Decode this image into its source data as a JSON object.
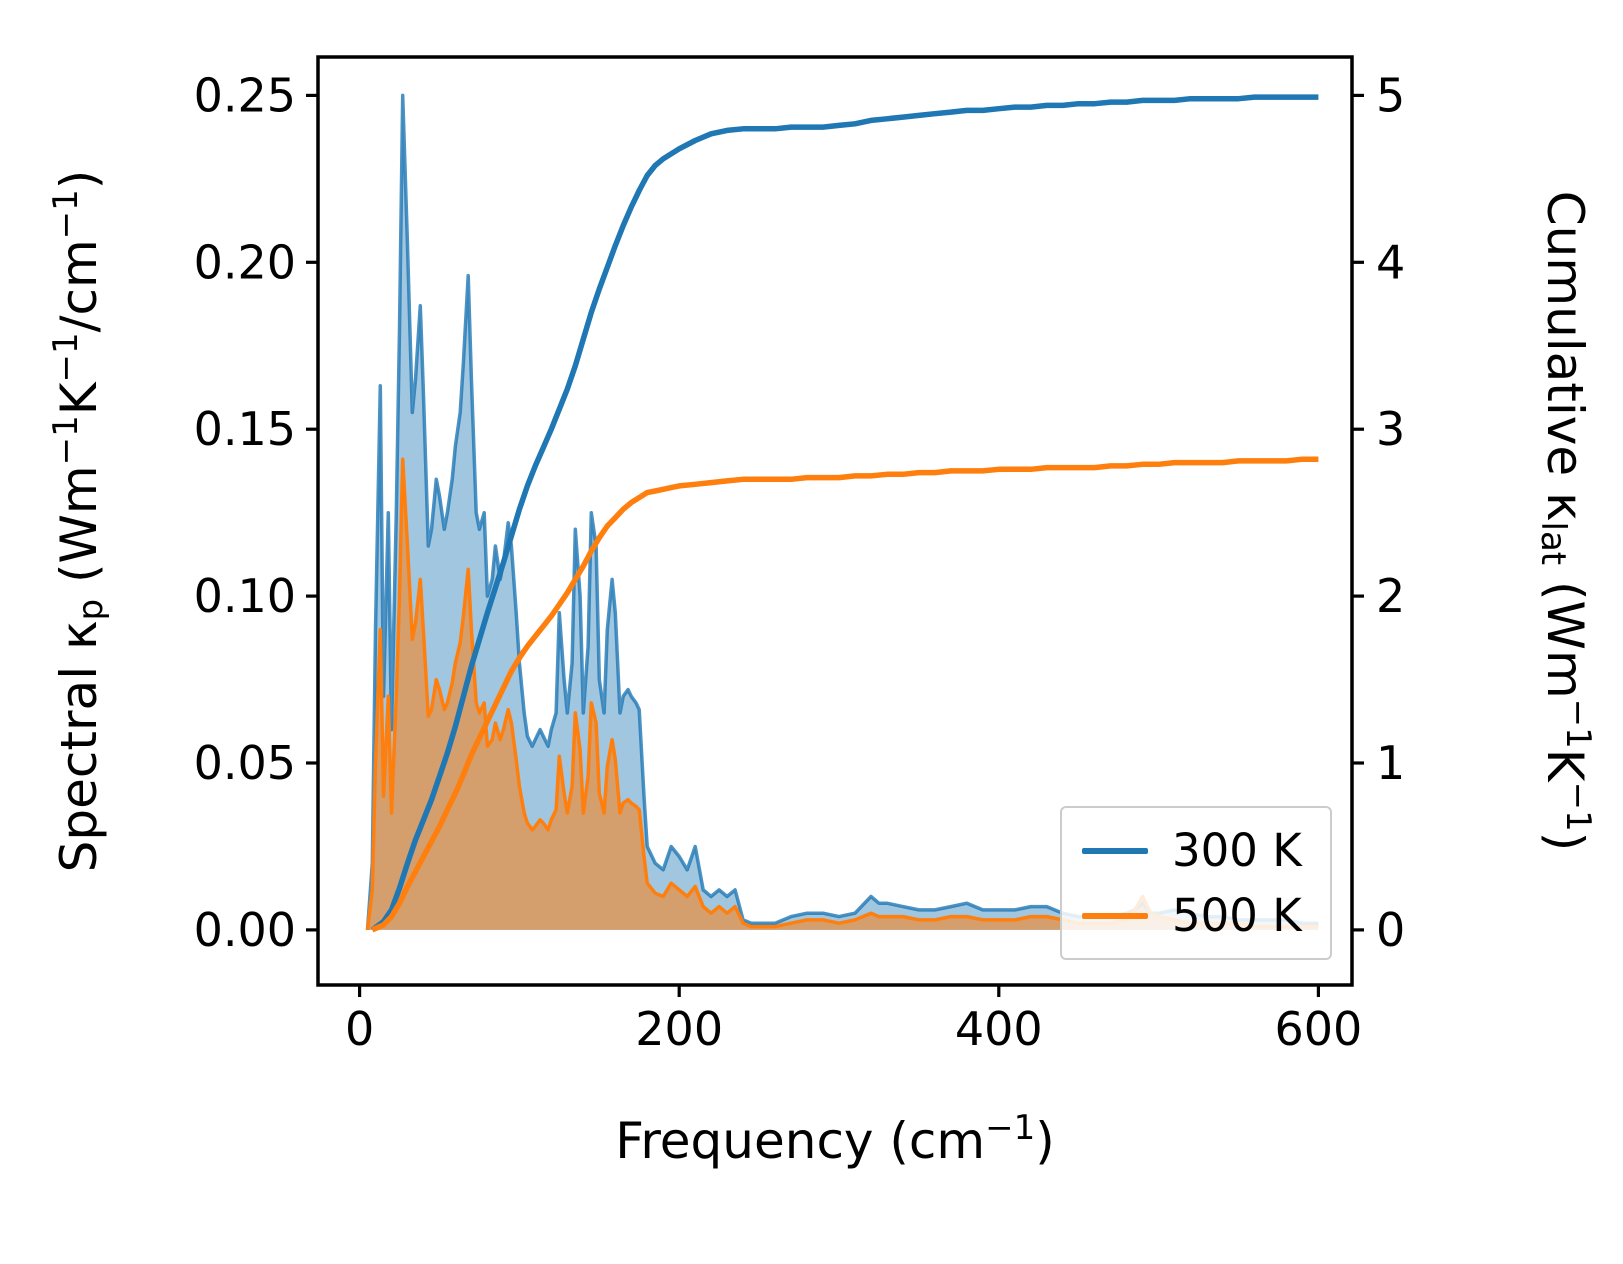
{
  "colors": {
    "series_300K": "#1f77b4",
    "series_500K": "#ff7f0e",
    "axes": "#000000",
    "legend_border": "#cccccc",
    "background": "#ffffff"
  },
  "chart_data": {
    "type": "area",
    "title": "",
    "grid": false,
    "legend": {
      "position": "lower right",
      "entries": [
        {
          "label": "300 K",
          "color": "#1f77b4"
        },
        {
          "label": "500 K",
          "color": "#ff7f0e"
        }
      ]
    },
    "xlabel_parts": [
      {
        "t": "Frequency (cm"
      },
      {
        "t": "−1",
        "s": "sup"
      },
      {
        "t": ")"
      }
    ],
    "ylabel_left_parts": [
      {
        "t": "Spectral κ"
      },
      {
        "t": "p",
        "s": "sub"
      },
      {
        "t": " (Wm"
      },
      {
        "t": "−1",
        "s": "sup"
      },
      {
        "t": "K"
      },
      {
        "t": "−1",
        "s": "sup"
      },
      {
        "t": "/cm"
      },
      {
        "t": "−1",
        "s": "sup"
      },
      {
        "t": ")"
      }
    ],
    "ylabel_right_parts": [
      {
        "t": "Cumulative κ"
      },
      {
        "t": "lat",
        "s": "sub"
      },
      {
        "t": " (Wm"
      },
      {
        "t": "−1",
        "s": "sup"
      },
      {
        "t": "K"
      },
      {
        "t": "−1",
        "s": "sup"
      },
      {
        "t": ")"
      }
    ],
    "xlim": [
      -26,
      621
    ],
    "ylim_left": [
      -0.0165,
      0.2615
    ],
    "ylim_right": [
      -0.33,
      5.23
    ],
    "xticks": [
      0,
      200,
      400,
      600
    ],
    "xtick_labels": [
      "0",
      "200",
      "400",
      "600"
    ],
    "yticks_left": [
      0,
      0.05,
      0.1,
      0.15,
      0.2,
      0.25
    ],
    "ytick_left_labels": [
      "0.00",
      "0.05",
      "0.10",
      "0.15",
      "0.20",
      "0.25"
    ],
    "yticks_right": [
      0,
      1,
      2,
      3,
      4,
      5
    ],
    "ytick_right_labels": [
      "0",
      "1",
      "2",
      "3",
      "4",
      "5"
    ],
    "x_spectral": [
      5,
      8,
      10,
      13,
      15,
      18,
      20,
      23,
      25,
      27,
      30,
      33,
      35,
      38,
      40,
      43,
      45,
      48,
      50,
      53,
      55,
      58,
      60,
      63,
      65,
      68,
      70,
      73,
      75,
      78,
      80,
      83,
      85,
      88,
      90,
      93,
      95,
      98,
      100,
      103,
      105,
      108,
      110,
      113,
      115,
      118,
      120,
      123,
      125,
      128,
      130,
      133,
      135,
      138,
      140,
      143,
      145,
      148,
      150,
      153,
      155,
      158,
      160,
      163,
      165,
      168,
      170,
      173,
      175,
      178,
      180,
      185,
      190,
      195,
      200,
      205,
      210,
      215,
      220,
      225,
      230,
      235,
      240,
      245,
      250,
      260,
      270,
      280,
      290,
      300,
      310,
      320,
      325,
      330,
      340,
      350,
      360,
      370,
      380,
      390,
      400,
      410,
      420,
      430,
      440,
      450,
      460,
      470,
      480,
      485,
      490,
      495,
      500,
      510,
      520,
      530,
      540,
      550,
      560,
      570,
      580,
      590,
      600
    ],
    "spectral_300": [
      0.0,
      0.02,
      0.09,
      0.163,
      0.07,
      0.125,
      0.06,
      0.125,
      0.18,
      0.25,
      0.205,
      0.155,
      0.165,
      0.187,
      0.16,
      0.115,
      0.12,
      0.135,
      0.13,
      0.12,
      0.125,
      0.135,
      0.145,
      0.155,
      0.17,
      0.196,
      0.165,
      0.125,
      0.12,
      0.125,
      0.1,
      0.105,
      0.115,
      0.105,
      0.11,
      0.122,
      0.115,
      0.095,
      0.08,
      0.065,
      0.058,
      0.055,
      0.057,
      0.06,
      0.058,
      0.055,
      0.06,
      0.065,
      0.095,
      0.075,
      0.065,
      0.08,
      0.12,
      0.1,
      0.065,
      0.085,
      0.125,
      0.115,
      0.075,
      0.065,
      0.09,
      0.105,
      0.095,
      0.065,
      0.07,
      0.072,
      0.07,
      0.068,
      0.066,
      0.04,
      0.025,
      0.02,
      0.018,
      0.025,
      0.022,
      0.018,
      0.025,
      0.012,
      0.01,
      0.012,
      0.01,
      0.012,
      0.003,
      0.002,
      0.002,
      0.002,
      0.004,
      0.005,
      0.005,
      0.004,
      0.005,
      0.01,
      0.008,
      0.008,
      0.007,
      0.006,
      0.006,
      0.007,
      0.008,
      0.006,
      0.006,
      0.006,
      0.007,
      0.007,
      0.005,
      0.004,
      0.004,
      0.004,
      0.005,
      0.006,
      0.008,
      0.005,
      0.005,
      0.006,
      0.005,
      0.004,
      0.004,
      0.003,
      0.003,
      0.003,
      0.003,
      0.002,
      0.002
    ],
    "spectral_500": [
      0.0,
      0.012,
      0.05,
      0.09,
      0.04,
      0.07,
      0.035,
      0.07,
      0.1,
      0.141,
      0.115,
      0.087,
      0.092,
      0.105,
      0.089,
      0.064,
      0.066,
      0.075,
      0.072,
      0.066,
      0.068,
      0.074,
      0.08,
      0.086,
      0.094,
      0.108,
      0.09,
      0.068,
      0.065,
      0.068,
      0.055,
      0.057,
      0.062,
      0.057,
      0.06,
      0.066,
      0.062,
      0.051,
      0.043,
      0.035,
      0.032,
      0.03,
      0.031,
      0.033,
      0.032,
      0.03,
      0.033,
      0.036,
      0.052,
      0.041,
      0.035,
      0.043,
      0.065,
      0.054,
      0.035,
      0.046,
      0.068,
      0.062,
      0.041,
      0.035,
      0.049,
      0.057,
      0.051,
      0.035,
      0.038,
      0.039,
      0.038,
      0.037,
      0.036,
      0.022,
      0.014,
      0.011,
      0.01,
      0.014,
      0.012,
      0.01,
      0.013,
      0.007,
      0.005,
      0.007,
      0.005,
      0.007,
      0.002,
      0.001,
      0.001,
      0.001,
      0.002,
      0.003,
      0.003,
      0.002,
      0.003,
      0.005,
      0.004,
      0.004,
      0.004,
      0.003,
      0.003,
      0.004,
      0.004,
      0.003,
      0.003,
      0.003,
      0.004,
      0.004,
      0.003,
      0.002,
      0.002,
      0.002,
      0.003,
      0.006,
      0.01,
      0.005,
      0.004,
      0.003,
      0.002,
      0.002,
      0.002,
      0.002,
      0.001,
      0.001,
      0.001,
      0.001,
      0.001
    ],
    "x_cumulative": [
      8,
      15,
      20,
      25,
      30,
      35,
      40,
      45,
      50,
      55,
      60,
      65,
      70,
      75,
      80,
      85,
      90,
      95,
      100,
      105,
      110,
      115,
      120,
      125,
      130,
      135,
      140,
      145,
      150,
      155,
      160,
      165,
      170,
      175,
      180,
      185,
      190,
      195,
      200,
      210,
      220,
      230,
      240,
      250,
      260,
      270,
      280,
      290,
      300,
      310,
      320,
      330,
      340,
      350,
      360,
      370,
      380,
      390,
      400,
      410,
      420,
      430,
      440,
      450,
      460,
      470,
      480,
      490,
      500,
      510,
      520,
      530,
      540,
      550,
      560,
      570,
      580,
      590,
      600
    ],
    "cumulative_300": [
      0.0,
      0.05,
      0.12,
      0.25,
      0.4,
      0.54,
      0.66,
      0.78,
      0.92,
      1.06,
      1.22,
      1.4,
      1.58,
      1.74,
      1.9,
      2.05,
      2.2,
      2.36,
      2.52,
      2.66,
      2.78,
      2.89,
      3.0,
      3.12,
      3.24,
      3.38,
      3.54,
      3.7,
      3.84,
      3.97,
      4.1,
      4.22,
      4.33,
      4.43,
      4.52,
      4.58,
      4.62,
      4.65,
      4.68,
      4.73,
      4.77,
      4.79,
      4.8,
      4.8,
      4.8,
      4.81,
      4.81,
      4.81,
      4.82,
      4.83,
      4.85,
      4.86,
      4.87,
      4.88,
      4.89,
      4.9,
      4.91,
      4.91,
      4.92,
      4.93,
      4.93,
      4.94,
      4.94,
      4.95,
      4.95,
      4.96,
      4.96,
      4.97,
      4.97,
      4.97,
      4.98,
      4.98,
      4.98,
      4.98,
      4.99,
      4.99,
      4.99,
      4.99,
      4.99
    ],
    "cumulative_500": [
      0.0,
      0.03,
      0.08,
      0.16,
      0.26,
      0.35,
      0.44,
      0.53,
      0.62,
      0.72,
      0.82,
      0.93,
      1.05,
      1.15,
      1.25,
      1.35,
      1.45,
      1.55,
      1.63,
      1.7,
      1.76,
      1.82,
      1.88,
      1.95,
      2.02,
      2.1,
      2.18,
      2.27,
      2.35,
      2.42,
      2.47,
      2.52,
      2.56,
      2.59,
      2.62,
      2.63,
      2.64,
      2.65,
      2.66,
      2.67,
      2.68,
      2.69,
      2.7,
      2.7,
      2.7,
      2.7,
      2.71,
      2.71,
      2.71,
      2.72,
      2.72,
      2.73,
      2.73,
      2.74,
      2.74,
      2.75,
      2.75,
      2.75,
      2.76,
      2.76,
      2.76,
      2.77,
      2.77,
      2.77,
      2.77,
      2.78,
      2.78,
      2.79,
      2.79,
      2.8,
      2.8,
      2.8,
      2.8,
      2.81,
      2.81,
      2.81,
      2.81,
      2.82,
      2.82
    ]
  }
}
